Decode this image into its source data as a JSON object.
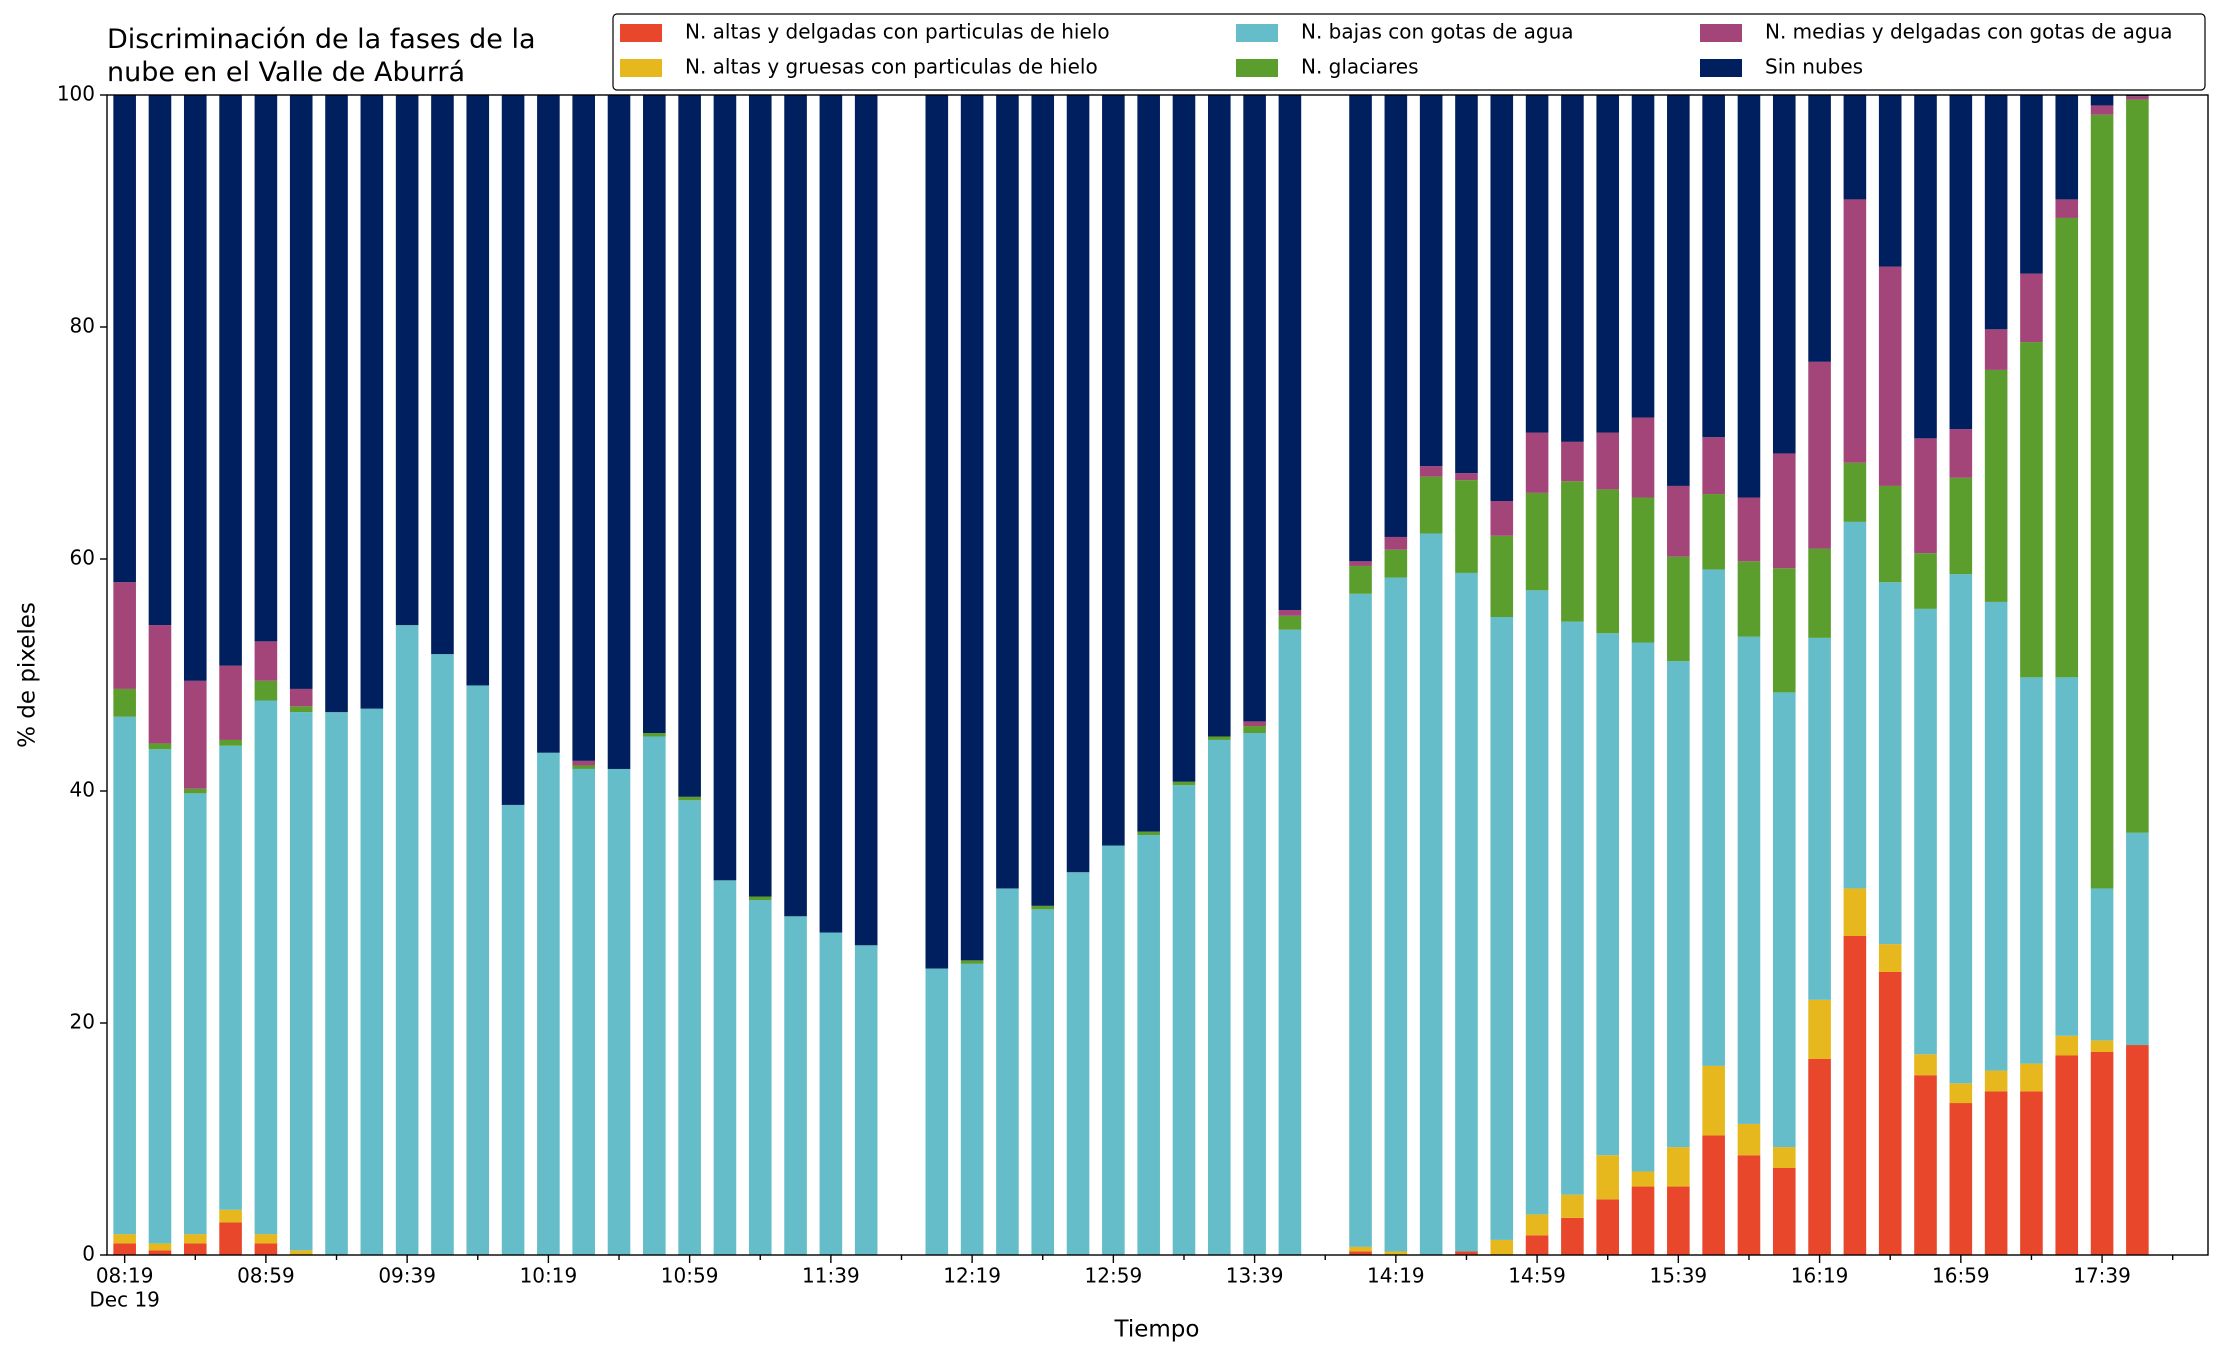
{
  "chart_data": {
    "type": "stacked_bar",
    "title": "Discriminación de la fases de la\nnube en el Valle de Aburrá",
    "x_label": "Tiempo",
    "y_label": "% de pixeles",
    "x_date": "Dec 19",
    "categories": [
      "08:19",
      null,
      null,
      null,
      "08:59",
      null,
      null,
      null,
      "09:39",
      null,
      null,
      null,
      "10:19",
      null,
      null,
      null,
      "10:59",
      null,
      null,
      null,
      "11:39",
      null,
      null,
      null,
      "12:19",
      null,
      null,
      null,
      "12:59",
      null,
      null,
      null,
      "13:39",
      null,
      null,
      null,
      "14:19",
      null,
      null,
      null,
      "14:59",
      null,
      null,
      null,
      "15:39",
      null,
      null,
      null,
      "16:19",
      null,
      null,
      null,
      "16:59",
      null,
      null,
      null,
      "17:39",
      null,
      null
    ],
    "ylim": [
      0,
      100
    ],
    "yticks": [
      0,
      20,
      40,
      60,
      80,
      100
    ],
    "grid": false,
    "legend": "top",
    "series": [
      {
        "name": "N. altas y delgadas con particulas de hielo",
        "color": "#e8472b",
        "values": [
          1.0,
          0.4,
          1.0,
          2.8,
          1.0,
          0,
          0,
          0,
          0,
          0,
          0,
          0,
          0,
          0,
          0,
          0,
          0,
          0,
          0,
          0,
          0,
          0,
          null,
          0,
          0,
          0,
          0,
          0,
          0,
          0,
          0,
          0,
          0,
          0,
          null,
          0.3,
          0,
          0,
          0.3,
          0,
          1.7,
          3.2,
          4.8,
          5.9,
          5.9,
          10.3,
          8.6,
          7.5,
          16.9,
          27.5,
          24.4,
          15.5,
          13.1,
          14.1,
          14.1,
          17.2,
          17.5,
          18.1,
          null
        ]
      },
      {
        "name": "N. altas y gruesas con particulas de hielo",
        "color": "#e6b81e",
        "values": [
          0.8,
          0.6,
          0.8,
          1.1,
          0.8,
          0.4,
          0,
          0,
          0,
          0,
          0,
          0,
          0,
          0,
          0,
          0,
          0,
          0,
          0,
          0,
          0,
          0,
          null,
          0,
          0,
          0,
          0,
          0,
          0,
          0,
          0,
          0,
          0,
          0,
          null,
          0.4,
          0.3,
          0,
          0,
          1.3,
          1.8,
          2.0,
          3.8,
          1.3,
          3.4,
          6.0,
          2.7,
          1.8,
          5.1,
          4.1,
          2.4,
          1.8,
          1.7,
          1.8,
          2.4,
          1.7,
          1.0,
          0,
          null
        ]
      },
      {
        "name": "N. bajas con gotas de agua",
        "color": "#64bdc9",
        "values": [
          44.6,
          42.6,
          38.0,
          40.0,
          46.0,
          46.4,
          46.8,
          47.1,
          54.3,
          51.8,
          49.1,
          38.8,
          43.3,
          41.9,
          41.9,
          44.7,
          39.2,
          32.3,
          30.6,
          29.2,
          27.8,
          26.7,
          null,
          24.7,
          25.1,
          31.6,
          29.8,
          33.0,
          35.3,
          36.2,
          40.5,
          44.4,
          45.0,
          53.9,
          null,
          56.3,
          58.1,
          62.2,
          58.5,
          53.7,
          53.8,
          49.4,
          45.0,
          45.6,
          41.9,
          42.8,
          42.0,
          39.2,
          31.2,
          31.6,
          31.2,
          38.4,
          43.9,
          40.4,
          33.3,
          30.9,
          13.1,
          18.3,
          null
        ]
      },
      {
        "name": "N. glaciares",
        "color": "#5c9e2e",
        "values": [
          2.4,
          0.5,
          0.4,
          0.5,
          1.7,
          0.5,
          0,
          0,
          0,
          0,
          0,
          0,
          0,
          0.3,
          0,
          0.3,
          0.3,
          0,
          0.3,
          0,
          0,
          0,
          null,
          0,
          0.3,
          0,
          0.3,
          0,
          0,
          0.3,
          0.3,
          0.3,
          0.6,
          1.2,
          null,
          2.4,
          2.4,
          4.9,
          8.0,
          7.0,
          8.4,
          12.1,
          12.4,
          12.5,
          9.0,
          6.5,
          6.5,
          10.7,
          7.7,
          5.1,
          8.3,
          4.8,
          8.3,
          20.0,
          28.9,
          39.6,
          66.7,
          63.2,
          null
        ]
      },
      {
        "name": "N. medias y delgadas con gotas de agua",
        "color": "#a4457a",
        "values": [
          9.2,
          10.2,
          9.3,
          6.4,
          3.4,
          1.5,
          0,
          0,
          0,
          0,
          0,
          0,
          0,
          0.4,
          0,
          0,
          0,
          0,
          0,
          0,
          0,
          0,
          null,
          0,
          0,
          0,
          0,
          0,
          0,
          0,
          0,
          0,
          0.4,
          0.5,
          null,
          0.4,
          1.1,
          0.9,
          0.6,
          3.0,
          5.2,
          3.4,
          4.9,
          6.9,
          6.1,
          4.9,
          5.5,
          9.9,
          16.1,
          22.7,
          18.9,
          9.9,
          4.2,
          3.5,
          5.9,
          1.6,
          0.8,
          0.3,
          null
        ]
      },
      {
        "name": "Sin nubes",
        "color": "#001f5e",
        "values": [
          42.0,
          45.7,
          50.5,
          49.2,
          47.1,
          51.2,
          53.2,
          52.9,
          45.7,
          48.2,
          50.9,
          61.2,
          56.7,
          57.4,
          58.1,
          55.0,
          60.5,
          67.7,
          69.1,
          70.8,
          72.2,
          73.3,
          null,
          75.3,
          74.6,
          68.4,
          69.9,
          67.0,
          64.7,
          63.5,
          59.2,
          55.3,
          54.0,
          44.4,
          null,
          40.2,
          38.1,
          32.0,
          32.6,
          35.0,
          29.1,
          29.9,
          29.1,
          27.8,
          33.7,
          29.5,
          34.7,
          30.9,
          23.0,
          9.0,
          14.8,
          29.6,
          28.8,
          20.2,
          15.4,
          9.0,
          0.9,
          0.1,
          null
        ]
      }
    ]
  }
}
